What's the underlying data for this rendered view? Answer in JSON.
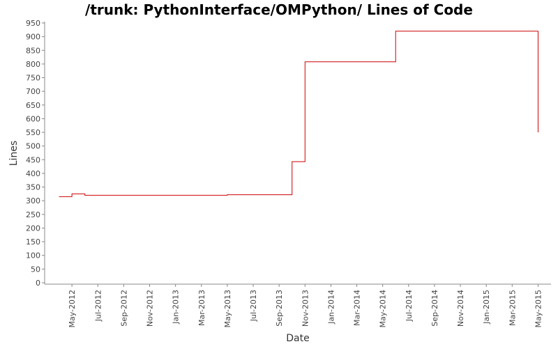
{
  "chart_data": {
    "type": "step",
    "title": "/trunk: PythonInterface/OMPython/ Lines of Code",
    "x_label": "Date",
    "y_label": "Lines",
    "x": [
      "Apr-2012",
      "May-2012",
      "Jun-2012",
      "May-2013",
      "Oct-2013",
      "Nov-2013",
      "Jun-2014",
      "May-2015"
    ],
    "series": [
      {
        "name": "Lines",
        "color": "#cc0000",
        "values": [
          315,
          325,
          320,
          322,
          443,
          808,
          920,
          550
        ]
      }
    ],
    "xlim": [
      "Mar-2012",
      "Jun-2015"
    ],
    "xticks": [
      "May-2012",
      "Jul-2012",
      "Sep-2012",
      "Nov-2012",
      "Jan-2013",
      "Mar-2013",
      "May-2013",
      "Jul-2013",
      "Sep-2013",
      "Nov-2013",
      "Jan-2014",
      "Mar-2014",
      "May-2014",
      "Jul-2014",
      "Sep-2014",
      "Nov-2014",
      "Jan-2015",
      "Mar-2015",
      "May-2015"
    ],
    "ylim": [
      0,
      950
    ],
    "yticks": [
      0,
      50,
      100,
      150,
      200,
      250,
      300,
      350,
      400,
      450,
      500,
      550,
      600,
      650,
      700,
      750,
      800,
      850,
      900,
      950
    ]
  }
}
